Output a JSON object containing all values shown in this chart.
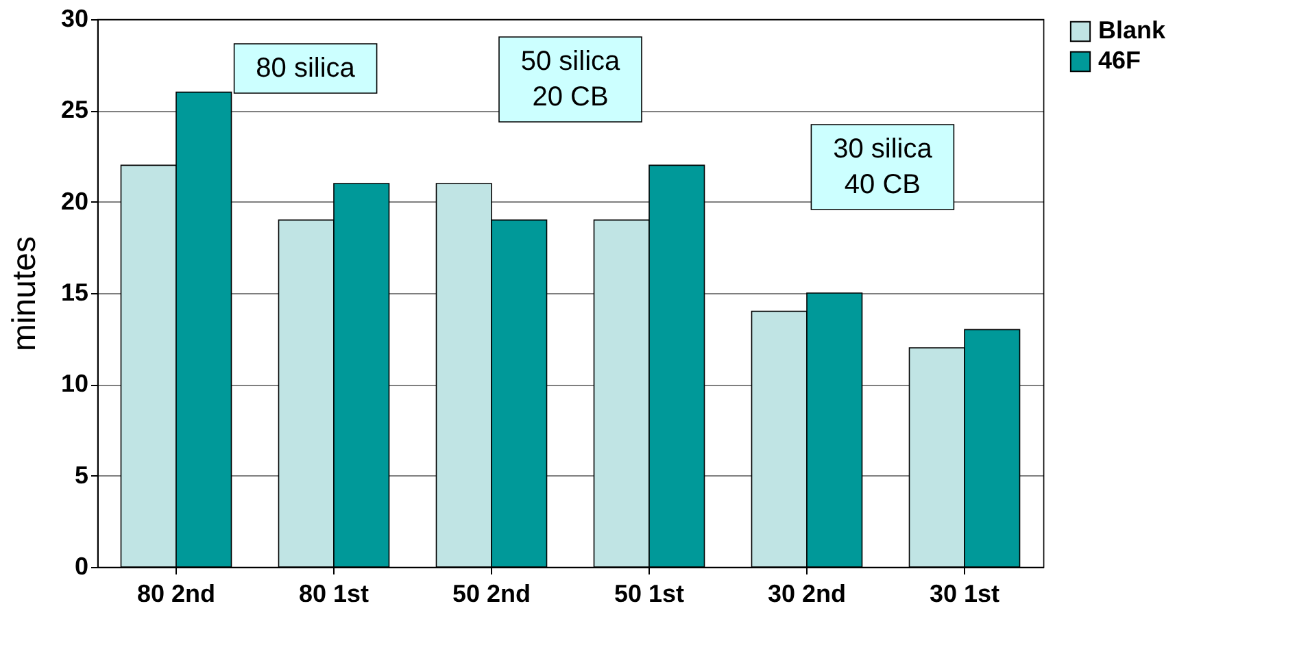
{
  "chart_data": {
    "type": "bar",
    "ylabel": "minutes",
    "categories": [
      "80  2nd",
      "80 1st",
      "50 2nd",
      "50 1st",
      "30 2nd",
      "30 1st"
    ],
    "series": [
      {
        "name": "Blank",
        "color": "#c0e4e4",
        "values": [
          22,
          19,
          21,
          19,
          14,
          12
        ]
      },
      {
        "name": "46F",
        "color": "#009999",
        "values": [
          26,
          21,
          19,
          22,
          15,
          13
        ]
      }
    ],
    "ylim": [
      0,
      30
    ],
    "yticks": [
      0,
      5,
      10,
      15,
      20,
      25,
      30
    ],
    "grid": "y",
    "legend": "right",
    "annotations": [
      "80 silica",
      "50 silica\n20 CB",
      "30 silica\n40 CB"
    ]
  }
}
